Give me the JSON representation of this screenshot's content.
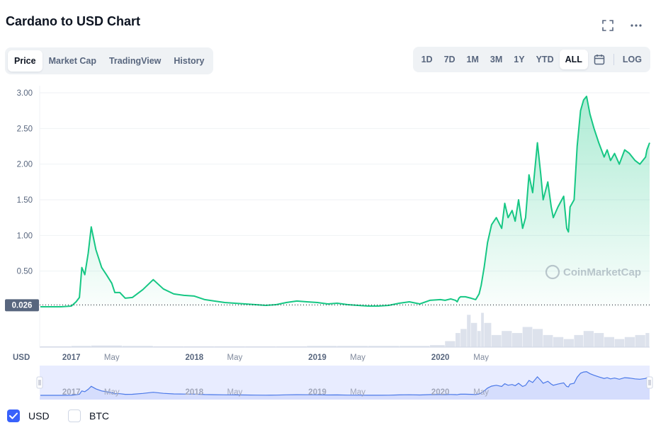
{
  "header": {
    "title": "Cardano to USD Chart"
  },
  "tabs": [
    {
      "label": "Price",
      "active": true
    },
    {
      "label": "Market Cap",
      "active": false
    },
    {
      "label": "TradingView",
      "active": false
    },
    {
      "label": "History",
      "active": false
    }
  ],
  "ranges": [
    {
      "label": "1D",
      "active": false
    },
    {
      "label": "7D",
      "active": false
    },
    {
      "label": "1M",
      "active": false
    },
    {
      "label": "3M",
      "active": false
    },
    {
      "label": "1Y",
      "active": false
    },
    {
      "label": "YTD",
      "active": false
    },
    {
      "label": "ALL",
      "active": true
    }
  ],
  "scale_label": "LOG",
  "icons": {
    "fullscreen": "fullscreen-icon",
    "more": "more-horizontal-icon",
    "calendar": "calendar-icon"
  },
  "colors": {
    "line": "#16c784",
    "accent": "#3861fb",
    "navigator_line": "#4a78e8"
  },
  "watermark": "CoinMarketCap",
  "legend": [
    {
      "label": "USD",
      "checked": true
    },
    {
      "label": "BTC",
      "checked": false
    }
  ],
  "chart_data": {
    "type": "area",
    "title": "Cardano to USD Chart",
    "currency_label": "USD",
    "current_price_label": "0.026",
    "baseline_value": 0.026,
    "y_ticks": [
      "3.00",
      "2.50",
      "2.00",
      "1.50",
      "1.00",
      "0.50"
    ],
    "ylim": [
      0,
      3.0
    ],
    "x_ticks": [
      "2017",
      "May",
      "2018",
      "May",
      "2019",
      "May",
      "2020",
      "May"
    ],
    "xlim": [
      "2016-09-29",
      "2021-09-13"
    ],
    "grid": true,
    "series": [
      {
        "x": [
          "2016-10-01",
          "2016-11-01",
          "2016-12-01",
          "2017-01-01",
          "2017-01-15",
          "2017-01-25",
          "2017-02-01",
          "2017-02-10",
          "2017-02-20",
          "2017-03-01",
          "2017-03-15",
          "2017-04-01",
          "2017-04-15",
          "2017-05-01",
          "2017-05-10",
          "2017-05-25",
          "2017-06-10",
          "2017-07-01",
          "2017-08-01",
          "2017-09-01",
          "2017-10-01",
          "2017-11-01",
          "2017-12-01",
          "2018-01-01",
          "2018-02-01",
          "2018-03-01",
          "2018-04-01",
          "2018-05-01",
          "2018-06-01",
          "2018-07-01",
          "2018-08-01",
          "2018-09-01",
          "2018-10-01",
          "2018-11-01",
          "2018-12-01",
          "2019-01-01",
          "2019-02-01",
          "2019-03-01",
          "2019-04-01",
          "2019-05-01",
          "2019-06-01",
          "2019-07-01",
          "2019-08-01",
          "2019-09-01",
          "2019-10-01",
          "2019-11-01",
          "2019-12-01",
          "2020-01-01",
          "2020-01-15",
          "2020-02-01",
          "2020-02-15",
          "2020-02-20",
          "2020-02-25",
          "2020-03-01",
          "2020-03-15",
          "2020-04-01",
          "2020-04-15",
          "2020-04-25",
          "2020-05-01",
          "2020-05-10",
          "2020-05-20",
          "2020-06-01",
          "2020-06-15",
          "2020-07-01",
          "2020-07-10",
          "2020-07-20",
          "2020-08-01",
          "2020-08-10",
          "2020-08-20",
          "2020-09-01",
          "2020-09-10",
          "2020-09-20",
          "2020-10-01",
          "2020-10-15",
          "2020-10-25",
          "2020-11-01",
          "2020-11-15",
          "2020-11-25",
          "2020-12-01",
          "2020-12-15",
          "2021-01-01",
          "2021-01-05",
          "2021-01-10",
          "2021-01-15",
          "2021-01-20",
          "2021-02-01",
          "2021-02-10",
          "2021-02-20",
          "2021-03-01",
          "2021-03-10",
          "2021-03-20",
          "2021-04-01",
          "2021-04-15",
          "2021-05-01",
          "2021-05-10",
          "2021-05-20",
          "2021-06-01",
          "2021-06-15",
          "2021-07-01",
          "2021-07-15",
          "2021-08-01",
          "2021-08-15",
          "2021-09-01",
          "2021-09-05",
          "2021-09-13"
        ],
        "values": [
          0.0,
          0.0,
          0.0,
          0.01,
          0.07,
          0.13,
          0.55,
          0.45,
          0.75,
          1.12,
          0.8,
          0.55,
          0.45,
          0.33,
          0.2,
          0.2,
          0.12,
          0.13,
          0.24,
          0.38,
          0.25,
          0.18,
          0.16,
          0.15,
          0.1,
          0.08,
          0.06,
          0.05,
          0.04,
          0.03,
          0.02,
          0.03,
          0.06,
          0.08,
          0.07,
          0.06,
          0.04,
          0.05,
          0.03,
          0.02,
          0.01,
          0.01,
          0.02,
          0.05,
          0.07,
          0.04,
          0.09,
          0.1,
          0.09,
          0.11,
          0.09,
          0.07,
          0.12,
          0.14,
          0.14,
          0.12,
          0.1,
          0.18,
          0.3,
          0.55,
          0.9,
          1.15,
          1.25,
          1.1,
          1.45,
          1.25,
          1.35,
          1.2,
          1.5,
          1.1,
          1.25,
          1.85,
          1.6,
          2.3,
          1.85,
          1.5,
          1.75,
          1.4,
          1.25,
          1.4,
          1.55,
          1.35,
          1.1,
          1.05,
          1.4,
          1.5,
          2.25,
          2.75,
          2.9,
          2.95,
          2.7,
          2.5,
          2.3,
          2.1,
          2.2,
          2.05,
          2.15,
          2.0,
          2.2,
          2.15,
          2.05,
          2.0,
          2.1,
          2.2,
          2.3
        ]
      }
    ],
    "volume": {
      "x": [
        "2016-10-01",
        "2017-01-01",
        "2017-03-01",
        "2017-06-01",
        "2017-09-01",
        "2017-12-01",
        "2018-03-01",
        "2018-06-01",
        "2018-09-01",
        "2018-12-01",
        "2019-03-01",
        "2019-06-01",
        "2019-09-01",
        "2019-12-01",
        "2020-01-15",
        "2020-02-15",
        "2020-03-01",
        "2020-03-20",
        "2020-04-01",
        "2020-04-20",
        "2020-05-01",
        "2020-05-10",
        "2020-06-01",
        "2020-07-01",
        "2020-08-01",
        "2020-09-01",
        "2020-10-01",
        "2020-11-01",
        "2020-12-01",
        "2021-01-01",
        "2021-02-01",
        "2021-03-01",
        "2021-04-01",
        "2021-05-01",
        "2021-06-01",
        "2021-07-01",
        "2021-08-01",
        "2021-09-01"
      ],
      "values": [
        0.02,
        0.03,
        0.04,
        0.03,
        0.02,
        0.02,
        0.02,
        0.02,
        0.02,
        0.03,
        0.03,
        0.03,
        0.03,
        0.05,
        0.15,
        0.35,
        0.45,
        0.8,
        0.6,
        0.4,
        0.85,
        0.6,
        0.3,
        0.4,
        0.35,
        0.5,
        0.45,
        0.3,
        0.25,
        0.2,
        0.3,
        0.4,
        0.35,
        0.25,
        0.2,
        0.25,
        0.3,
        0.35
      ]
    }
  }
}
